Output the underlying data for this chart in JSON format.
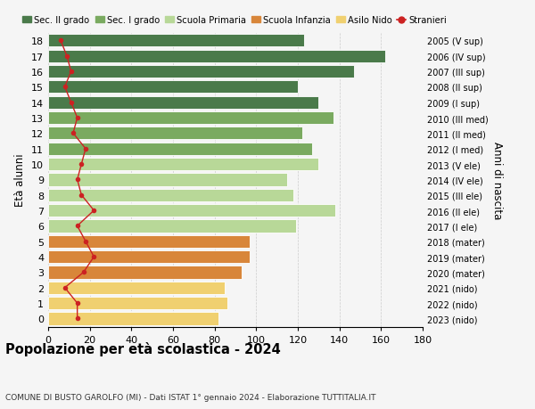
{
  "ages": [
    18,
    17,
    16,
    15,
    14,
    13,
    12,
    11,
    10,
    9,
    8,
    7,
    6,
    5,
    4,
    3,
    2,
    1,
    0
  ],
  "bar_values": [
    123,
    162,
    147,
    120,
    130,
    137,
    122,
    127,
    130,
    115,
    118,
    138,
    119,
    97,
    97,
    93,
    85,
    86,
    82
  ],
  "bar_colors": [
    "#4a7a4a",
    "#4a7a4a",
    "#4a7a4a",
    "#4a7a4a",
    "#4a7a4a",
    "#7aaa60",
    "#7aaa60",
    "#7aaa60",
    "#b8d898",
    "#b8d898",
    "#b8d898",
    "#b8d898",
    "#b8d898",
    "#d8863a",
    "#d8863a",
    "#d8863a",
    "#f0d070",
    "#f0d070",
    "#f0d070"
  ],
  "right_labels": [
    "2005 (V sup)",
    "2006 (IV sup)",
    "2007 (III sup)",
    "2008 (II sup)",
    "2009 (I sup)",
    "2010 (III med)",
    "2011 (II med)",
    "2012 (I med)",
    "2013 (V ele)",
    "2014 (IV ele)",
    "2015 (III ele)",
    "2016 (II ele)",
    "2017 (I ele)",
    "2018 (mater)",
    "2019 (mater)",
    "2020 (mater)",
    "2021 (nido)",
    "2022 (nido)",
    "2023 (nido)"
  ],
  "stranieri_values": [
    6,
    9,
    11,
    8,
    11,
    14,
    12,
    18,
    16,
    14,
    16,
    22,
    14,
    18,
    22,
    17,
    8,
    14,
    14
  ],
  "legend_labels": [
    "Sec. II grado",
    "Sec. I grado",
    "Scuola Primaria",
    "Scuola Infanzia",
    "Asilo Nido",
    "Stranieri"
  ],
  "legend_colors": [
    "#4a7a4a",
    "#7aaa60",
    "#b8d898",
    "#d8863a",
    "#f0d070",
    "#cc2222"
  ],
  "title": "Popolazione per età scolastica - 2024",
  "subtitle": "COMUNE DI BUSTO GAROLFO (MI) - Dati ISTAT 1° gennaio 2024 - Elaborazione TUTTITALIA.IT",
  "ylabel_left": "Età alunni",
  "ylabel_right": "Anni di nascita",
  "xlim": [
    0,
    180
  ],
  "xticks": [
    0,
    20,
    40,
    60,
    80,
    100,
    120,
    140,
    160,
    180
  ],
  "bg_color": "#f5f5f5",
  "bar_height": 0.82
}
